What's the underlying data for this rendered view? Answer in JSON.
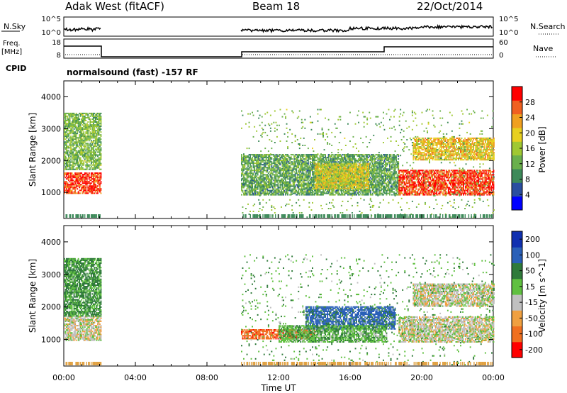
{
  "header": {
    "site": "Adak West (fitACF)",
    "beam": "Beam 18",
    "date": "22/Oct/2014"
  },
  "strips": {
    "nsky_label": "N.Sky",
    "nsearch_label": "N.Search",
    "nsky_ticks": [
      "10^5",
      "10^0"
    ],
    "nsky_right_ticks": [
      "10^5",
      "10^0"
    ],
    "freq_label_line1": "Freq.",
    "freq_label_line2": "[MHz]",
    "freq_ticks": [
      "18",
      "8"
    ],
    "nave_label": "Nave",
    "nave_ticks": [
      "60",
      "0"
    ],
    "cpid_label": "CPID",
    "cpid_text": "normalsound (fast) -157 RF"
  },
  "chart_data": [
    {
      "type": "heatmap",
      "name": "power",
      "xlabel": "Time UT",
      "ylabel": "Slant Range [km]",
      "x_ticks": [
        "00:00",
        "04:00",
        "08:00",
        "12:00",
        "16:00",
        "20:00",
        "00:00"
      ],
      "xlim_hours": [
        0,
        24
      ],
      "y_ticks": [
        1000,
        2000,
        3000,
        4000
      ],
      "ylim": [
        180,
        4500
      ],
      "colorbar": {
        "label": "Power [dB]",
        "ticks": [
          "4",
          "8",
          "12",
          "16",
          "20",
          "24",
          "28"
        ],
        "colors": [
          "#0000ff",
          "#2a4ea0",
          "#3d8a5a",
          "#6ab04c",
          "#a0c832",
          "#e8d020",
          "#f0a020",
          "#f06020",
          "#ff0000"
        ]
      },
      "scatter_regions": [
        {
          "t0": 0.0,
          "t1": 2.1,
          "r0": 950,
          "r1": 1600,
          "value": 28
        },
        {
          "t0": 0.0,
          "t1": 2.1,
          "r0": 1700,
          "r1": 3500,
          "value": 12
        },
        {
          "t0": 9.9,
          "t1": 18.7,
          "r0": 900,
          "r1": 2200,
          "value": 10
        },
        {
          "t0": 14.0,
          "t1": 17.0,
          "r0": 1100,
          "r1": 1900,
          "value": 18
        },
        {
          "t0": 18.7,
          "t1": 24.0,
          "r0": 900,
          "r1": 1700,
          "value": 28
        },
        {
          "t0": 19.5,
          "t1": 24.0,
          "r0": 2000,
          "r1": 2700,
          "value": 20
        },
        {
          "t0": 9.9,
          "t1": 24.0,
          "r0": 200,
          "r1": 3600,
          "value": 12
        }
      ]
    },
    {
      "type": "heatmap",
      "name": "velocity",
      "xlabel": "Time UT",
      "ylabel": "Slant Range [km]",
      "x_ticks": [
        "00:00",
        "04:00",
        "08:00",
        "12:00",
        "16:00",
        "20:00",
        "00:00"
      ],
      "xlim_hours": [
        0,
        24
      ],
      "y_ticks": [
        1000,
        2000,
        3000,
        4000
      ],
      "ylim": [
        180,
        4500
      ],
      "colorbar": {
        "label": "Velocity [m s^-1]",
        "ticks": [
          "200",
          "100",
          "50",
          "15",
          "-15",
          "-50",
          "-100",
          "-200"
        ],
        "colors": [
          "#1030b0",
          "#2a60b8",
          "#2f7a3a",
          "#60c040",
          "#c0c0c0",
          "#f0a040",
          "#f07020",
          "#ff0000"
        ]
      },
      "scatter_regions": [
        {
          "t0": 0.0,
          "t1": 2.1,
          "r0": 950,
          "r1": 1700,
          "value": 0
        },
        {
          "t0": 0.0,
          "t1": 2.1,
          "r0": 1700,
          "r1": 3500,
          "value": 60
        },
        {
          "t0": 9.9,
          "t1": 14.0,
          "r0": 1000,
          "r1": 1300,
          "value": -80
        },
        {
          "t0": 13.5,
          "t1": 18.5,
          "r0": 1300,
          "r1": 2000,
          "value": 120
        },
        {
          "t0": 12.0,
          "t1": 18.0,
          "r0": 900,
          "r1": 1400,
          "value": 40
        },
        {
          "t0": 18.7,
          "t1": 24.0,
          "r0": 900,
          "r1": 1700,
          "value": 0
        },
        {
          "t0": 19.5,
          "t1": 24.0,
          "r0": 2000,
          "r1": 2700,
          "value": 0
        },
        {
          "t0": 9.9,
          "t1": 24.0,
          "r0": 200,
          "r1": 3600,
          "value": 40
        }
      ]
    }
  ]
}
